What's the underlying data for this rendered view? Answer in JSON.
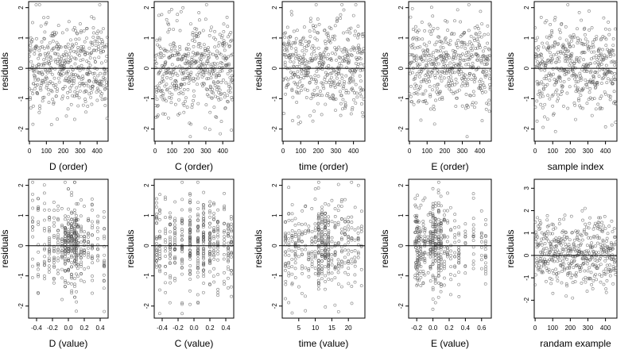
{
  "figure": {
    "layout": {
      "rows": 2,
      "cols": 5
    }
  },
  "chart_data": [
    {
      "type": "scatter",
      "title": "",
      "xlabel": "D (order)",
      "ylabel": "residuals",
      "xlim": [
        -5,
        465
      ],
      "ylim": [
        -2.4,
        2.2
      ],
      "xticks": [
        0,
        100,
        200,
        300,
        400
      ],
      "xtick_labels": [
        "0",
        "100",
        "200",
        "300",
        "400"
      ],
      "yticks": [
        -2,
        -1,
        0,
        1,
        2
      ],
      "ytick_labels": [
        "-2",
        "-1",
        "0",
        "1",
        "2"
      ],
      "hline": 0,
      "marker": "open-circle",
      "n_points": 460,
      "points_note": "order index 0-460, residuals ~N(0,0.8), no trend",
      "points_seed": 11,
      "points_kind": "order"
    },
    {
      "type": "scatter",
      "title": "",
      "xlabel": "C (order)",
      "ylabel": "residuals",
      "xlim": [
        -5,
        465
      ],
      "ylim": [
        -2.4,
        2.2
      ],
      "xticks": [
        0,
        100,
        200,
        300,
        400
      ],
      "xtick_labels": [
        "0",
        "100",
        "200",
        "300",
        "400"
      ],
      "yticks": [
        -2,
        -1,
        0,
        1,
        2
      ],
      "ytick_labels": [
        "-2",
        "-1",
        "0",
        "1",
        "2"
      ],
      "hline": 0,
      "marker": "open-circle",
      "n_points": 460,
      "points_seed": 23,
      "points_kind": "order"
    },
    {
      "type": "scatter",
      "title": "",
      "xlabel": "time (order)",
      "ylabel": "residuals",
      "xlim": [
        -5,
        465
      ],
      "ylim": [
        -2.4,
        2.2
      ],
      "xticks": [
        0,
        100,
        200,
        300,
        400
      ],
      "xtick_labels": [
        "0",
        "100",
        "200",
        "300",
        "400"
      ],
      "yticks": [
        -2,
        -1,
        0,
        1,
        2
      ],
      "ytick_labels": [
        "-2",
        "-1",
        "0",
        "1",
        "2"
      ],
      "hline": 0,
      "marker": "open-circle",
      "n_points": 460,
      "points_seed": 37,
      "points_kind": "order"
    },
    {
      "type": "scatter",
      "title": "",
      "xlabel": "E (order)",
      "ylabel": "residuals",
      "xlim": [
        -5,
        465
      ],
      "ylim": [
        -2.4,
        2.2
      ],
      "xticks": [
        0,
        100,
        200,
        300,
        400
      ],
      "xtick_labels": [
        "0",
        "100",
        "200",
        "300",
        "400"
      ],
      "yticks": [
        -2,
        -1,
        0,
        1,
        2
      ],
      "ytick_labels": [
        "-2",
        "-1",
        "0",
        "1",
        "2"
      ],
      "hline": 0,
      "marker": "open-circle",
      "n_points": 460,
      "points_seed": 41,
      "points_kind": "order"
    },
    {
      "type": "scatter",
      "title": "",
      "xlabel": "sample index",
      "ylabel": "residuals",
      "xlim": [
        -5,
        465
      ],
      "ylim": [
        -2.4,
        2.2
      ],
      "xticks": [
        0,
        100,
        200,
        300,
        400
      ],
      "xtick_labels": [
        "0",
        "100",
        "200",
        "300",
        "400"
      ],
      "yticks": [
        -2,
        -1,
        0,
        1,
        2
      ],
      "ytick_labels": [
        "-2",
        "-1",
        "0",
        "1",
        "2"
      ],
      "hline": 0,
      "marker": "open-circle",
      "n_points": 460,
      "points_seed": 53,
      "points_kind": "order"
    },
    {
      "type": "scatter",
      "title": "",
      "xlabel": "D (value)",
      "ylabel": "residuals",
      "xlim": [
        -0.5,
        0.5
      ],
      "ylim": [
        -2.4,
        2.2
      ],
      "xticks": [
        -0.4,
        -0.2,
        0.0,
        0.2,
        0.4
      ],
      "xtick_labels": [
        "-0.4",
        "-0.2",
        "0.0",
        "0.2",
        "0.4"
      ],
      "yticks": [
        -2,
        -1,
        0,
        1,
        2
      ],
      "ytick_labels": [
        "-2",
        "-1",
        "0",
        "1",
        "2"
      ],
      "hline": 0,
      "marker": "open-circle",
      "n_points": 460,
      "points_seed": 61,
      "points_kind": "values",
      "x_values": [
        -0.45,
        -0.38,
        -0.3,
        -0.24,
        -0.18,
        -0.13,
        -0.08,
        -0.04,
        0.0,
        0.04,
        0.08,
        0.1,
        0.12,
        0.16,
        0.2,
        0.25,
        0.3,
        0.37,
        0.45
      ]
    },
    {
      "type": "scatter",
      "title": "",
      "xlabel": "C (value)",
      "ylabel": "residuals",
      "xlim": [
        -0.5,
        0.5
      ],
      "ylim": [
        -2.4,
        2.2
      ],
      "xticks": [
        -0.4,
        -0.2,
        0.0,
        0.2,
        0.4
      ],
      "xtick_labels": [
        "-0.4",
        "-0.2",
        "0.0",
        "0.2",
        "0.4"
      ],
      "yticks": [
        -2,
        -1,
        0,
        1,
        2
      ],
      "ytick_labels": [
        "-2",
        "-1",
        "0",
        "1",
        "2"
      ],
      "hline": 0,
      "marker": "open-circle",
      "n_points": 460,
      "points_seed": 71,
      "points_kind": "values",
      "x_values": [
        -0.47,
        -0.43,
        -0.36,
        -0.3,
        -0.24,
        -0.15,
        -0.05,
        0.05,
        0.12,
        0.2,
        0.25,
        0.3,
        0.38,
        0.43,
        0.47
      ]
    },
    {
      "type": "scatter",
      "title": "",
      "xlabel": "time (value)",
      "ylabel": "residuals",
      "xlim": [
        0,
        25
      ],
      "ylim": [
        -2.4,
        2.2
      ],
      "xticks": [
        5,
        10,
        15,
        20
      ],
      "xtick_labels": [
        "5",
        "10",
        "15",
        "20"
      ],
      "yticks": [
        -2,
        -1,
        0,
        1,
        2
      ],
      "ytick_labels": [
        "-2",
        "-1",
        "0",
        "1",
        "2"
      ],
      "hline": 0,
      "marker": "open-circle",
      "n_points": 460,
      "points_seed": 83,
      "points_kind": "values",
      "x_values": [
        1,
        2,
        3,
        4,
        5,
        6,
        7,
        8,
        9,
        10,
        11,
        12,
        13,
        14,
        15,
        16,
        17,
        18,
        19,
        20,
        21,
        22,
        23,
        24
      ]
    },
    {
      "type": "scatter",
      "title": "",
      "xlabel": "E (value)",
      "ylabel": "residuals",
      "xlim": [
        -0.3,
        0.72
      ],
      "ylim": [
        -2.4,
        2.2
      ],
      "xticks": [
        -0.2,
        0.0,
        0.2,
        0.4,
        0.6
      ],
      "xtick_labels": [
        "-0.2",
        "0.0",
        "0.2",
        "0.4",
        "0.6"
      ],
      "yticks": [
        -2,
        -1,
        0,
        1,
        2
      ],
      "ytick_labels": [
        "-2",
        "-1",
        "0",
        "1",
        "2"
      ],
      "hline": 0,
      "marker": "open-circle",
      "n_points": 460,
      "points_seed": 97,
      "points_kind": "values",
      "x_values": [
        -0.22,
        -0.21,
        -0.2,
        -0.19,
        -0.17,
        -0.15,
        -0.12,
        -0.1,
        -0.06,
        -0.03,
        0.0,
        0.03,
        0.07,
        0.1,
        0.14,
        0.18,
        0.22,
        0.27,
        0.32,
        0.4,
        0.5,
        0.6,
        0.65
      ]
    },
    {
      "type": "scatter",
      "title": "",
      "xlabel": "randam example",
      "ylabel": "residuals",
      "xlim": [
        -5,
        465
      ],
      "ylim": [
        -2.8,
        3.4
      ],
      "xticks": [
        0,
        100,
        200,
        300,
        400
      ],
      "xtick_labels": [
        "0",
        "100",
        "200",
        "300",
        "400"
      ],
      "yticks": [
        -2,
        -1,
        0,
        1,
        2,
        3
      ],
      "ytick_labels": [
        "-2",
        "-1",
        "0",
        "1",
        "2",
        "3"
      ],
      "hline": 0,
      "marker": "open-circle",
      "n_points": 460,
      "points_seed": 109,
      "points_kind": "order"
    }
  ]
}
